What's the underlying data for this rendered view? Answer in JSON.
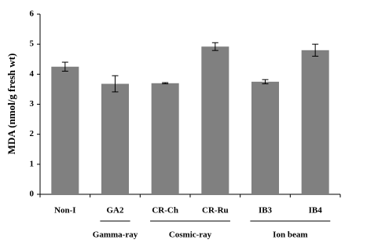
{
  "chart_data": {
    "type": "bar",
    "y_label": "MDA (nmol/g fresh wt)",
    "categories": [
      "Non-I",
      "GA2",
      "CR-Ch",
      "CR-Ru",
      "IB3",
      "IB4"
    ],
    "values": [
      4.25,
      3.68,
      3.7,
      4.92,
      3.75,
      4.8
    ],
    "errors": [
      0.15,
      0.27,
      0.02,
      0.13,
      0.07,
      0.2
    ],
    "color": "#808080",
    "ylim": [
      0,
      6
    ],
    "yticks": [
      0,
      1,
      2,
      3,
      4,
      5,
      6
    ],
    "groups": [
      {
        "label": "Gamma-ray",
        "members": [
          "GA2"
        ]
      },
      {
        "label": "Cosmic-ray",
        "members": [
          "CR-Ch",
          "CR-Ru"
        ]
      },
      {
        "label": "Ion beam",
        "members": [
          "IB3",
          "IB4"
        ]
      }
    ]
  }
}
